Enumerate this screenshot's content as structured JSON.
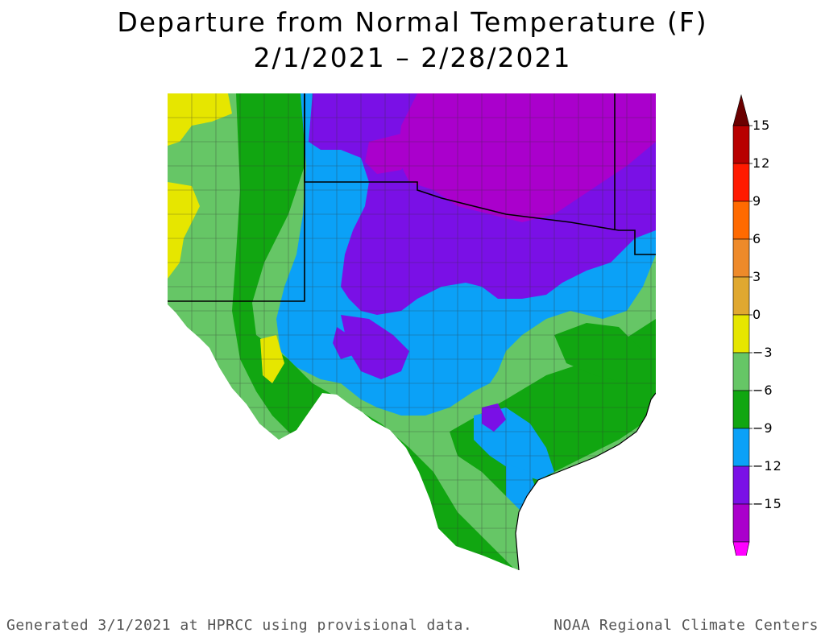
{
  "title": {
    "line1": "Departure from Normal Temperature (F)",
    "line2": "2/1/2021 – 2/28/2021"
  },
  "legend": {
    "unit": "F",
    "labels": [
      "15",
      "12",
      "9",
      "6",
      "3",
      "0",
      "−3",
      "−6",
      "−9",
      "−12",
      "−15"
    ],
    "bins": [
      {
        "range": "above 15",
        "color": "#6b0000"
      },
      {
        "range": "12 to 15",
        "color": "#b80000"
      },
      {
        "range": "9 to 12",
        "color": "#ff1a00"
      },
      {
        "range": "6 to 9",
        "color": "#ff6a00"
      },
      {
        "range": "3 to 6",
        "color": "#ee8a2a"
      },
      {
        "range": "0 to 3",
        "color": "#e0a830"
      },
      {
        "range": "-3 to 0",
        "color": "#e6e600"
      },
      {
        "range": "-6 to -3",
        "color": "#66c666"
      },
      {
        "range": "-9 to -6",
        "color": "#11a611"
      },
      {
        "range": "-12 to -9",
        "color": "#0ba1f7"
      },
      {
        "range": "-15 to -12",
        "color": "#7a10e6"
      },
      {
        "range": "below -15",
        "color": "#aa00cc"
      }
    ],
    "tip_low_color": "#ff00ff"
  },
  "map": {
    "region": "Texas and Oklahoma",
    "colors": {
      "yellow": "#e6e600",
      "light_green": "#66c666",
      "green": "#11a611",
      "blue": "#0ba1f7",
      "violet": "#7a10e6",
      "purple": "#aa00cc",
      "border": "#000000",
      "county": "#333333"
    }
  },
  "footer": {
    "left": "Generated 3/1/2021 at HPRCC using provisional data.",
    "right": "NOAA Regional Climate Centers"
  }
}
